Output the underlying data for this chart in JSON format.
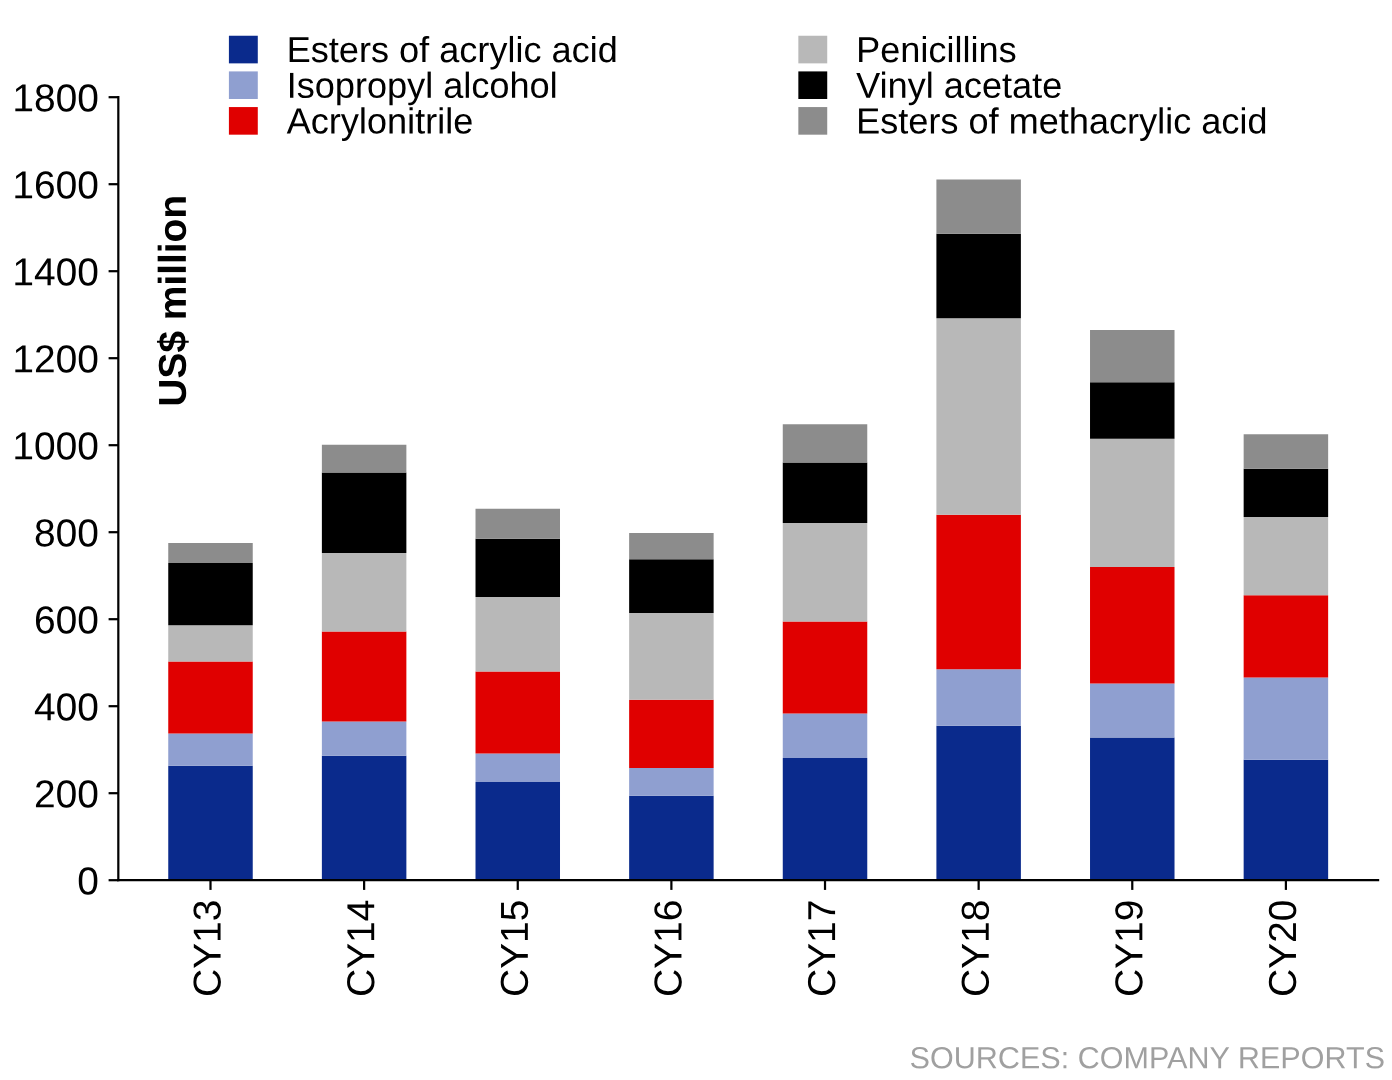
{
  "chart_data": {
    "type": "bar",
    "stacked": true,
    "ylabel": "US$ million",
    "categories": [
      "CY13",
      "CY14",
      "CY15",
      "CY16",
      "CY17",
      "CY18",
      "CY19",
      "CY20"
    ],
    "series": [
      {
        "name": "Esters of acrylic acid",
        "color": "#0a2a8c",
        "values": [
          263,
          286,
          226,
          194,
          281,
          355,
          328,
          277
        ]
      },
      {
        "name": "Isopropyl alcohol",
        "color": "#8f9fd0",
        "values": [
          74,
          79,
          65,
          64,
          102,
          130,
          124,
          189
        ]
      },
      {
        "name": "Acrylonitrile",
        "color": "#e00000",
        "values": [
          166,
          207,
          189,
          157,
          212,
          355,
          268,
          189
        ]
      },
      {
        "name": "Penicillins",
        "color": "#b8b8b8",
        "values": [
          83,
          180,
          171,
          199,
          226,
          452,
          295,
          180
        ]
      },
      {
        "name": "Vinyl acetate",
        "color": "#000000",
        "values": [
          143,
          185,
          134,
          124,
          139,
          194,
          130,
          111
        ]
      },
      {
        "name": "Esters of methacrylic acid",
        "color": "#8c8c8c",
        "values": [
          46,
          64,
          69,
          60,
          88,
          125,
          120,
          79
        ]
      }
    ],
    "ylim": [
      0,
      1800
    ],
    "yticks": [
      0,
      200,
      400,
      600,
      800,
      1000,
      1200,
      1400,
      1600,
      1800
    ],
    "grid": false,
    "legend": "top",
    "annotations": [
      "SOURCES: COMPANY REPORTS"
    ]
  }
}
